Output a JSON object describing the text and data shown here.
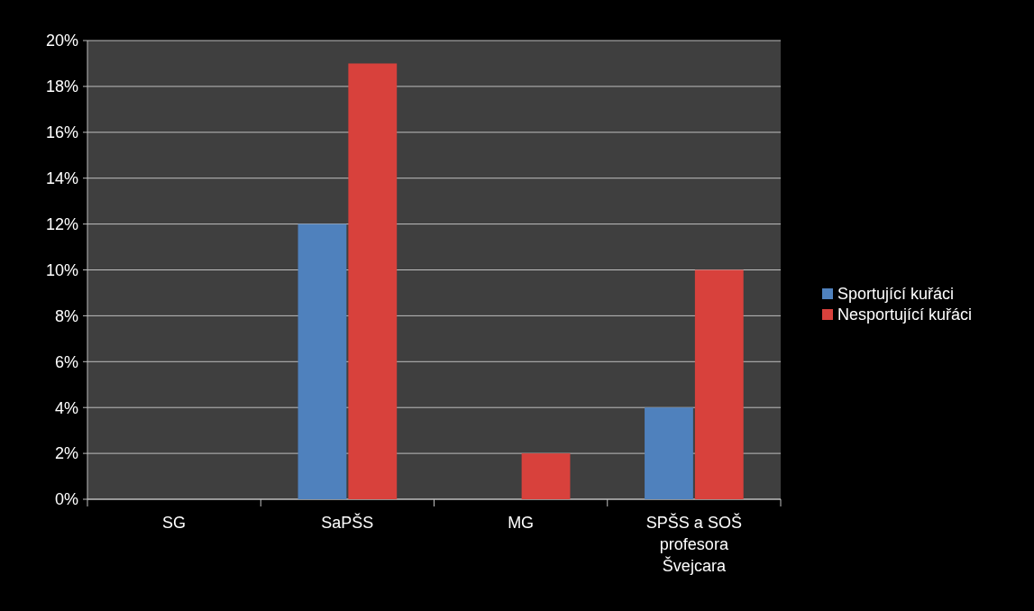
{
  "chart_data": {
    "type": "bar",
    "categories": [
      "SG",
      "SaPŠS",
      "MG",
      "SPŠS a SOŠ profesora Švejcara"
    ],
    "series": [
      {
        "name": "Sportující kuřáci",
        "color": "#4f81bd",
        "values": [
          0,
          12,
          0,
          4
        ]
      },
      {
        "name": "Nesportující kuřáci",
        "color": "#d8413c",
        "values": [
          0,
          19,
          2,
          10
        ]
      }
    ],
    "ylim": [
      0,
      20
    ],
    "yticks": [
      {
        "value": 0,
        "label": "0%"
      },
      {
        "value": 2,
        "label": "2%"
      },
      {
        "value": 4,
        "label": "4%"
      },
      {
        "value": 6,
        "label": "6%"
      },
      {
        "value": 8,
        "label": "8%"
      },
      {
        "value": 10,
        "label": "10%"
      },
      {
        "value": 12,
        "label": "12%"
      },
      {
        "value": 14,
        "label": "14%"
      },
      {
        "value": 16,
        "label": "16%"
      },
      {
        "value": 18,
        "label": "18%"
      },
      {
        "value": 20,
        "label": "20%"
      }
    ],
    "grid": "y",
    "legend": "right"
  }
}
